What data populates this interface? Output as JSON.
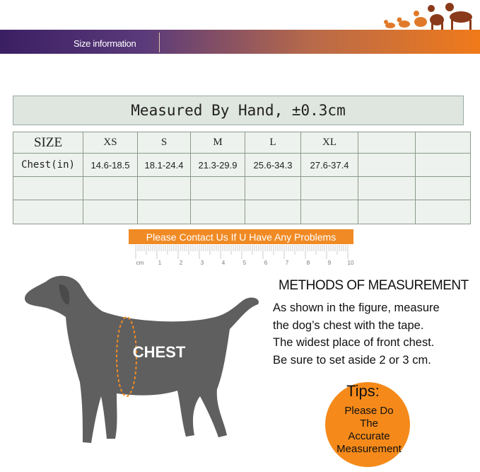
{
  "header": {
    "title": "Size information"
  },
  "measure_note": "Measured By Hand, ±0.3cm",
  "table": {
    "rows": [
      [
        "SIZE",
        "XS",
        "S",
        "M",
        "L",
        "XL"
      ],
      [
        "Chest(in)",
        "14.6-18.5",
        "18.1-24.4",
        "21.3-29.9",
        "25.6-34.3",
        "27.6-37.4"
      ]
    ]
  },
  "contact_banner": "Please Contact Us If U Have Any Problems",
  "ruler": {
    "labels": [
      "cm",
      "1",
      "2",
      "3",
      "4",
      "5",
      "6",
      "7",
      "8",
      "9",
      "10"
    ]
  },
  "figure_label": "CHEST",
  "methods": {
    "title": "METHODS OF MEASUREMENT",
    "lines": [
      "As shown in the figure, measure",
      "the dog’s chest with the tape.",
      "The widest place of front chest.",
      "Be sure to set aside 2 or 3 cm."
    ]
  },
  "tips": {
    "title": "Tips:",
    "lines": [
      "Please Do",
      "The",
      "Accurate",
      "Measurement"
    ]
  }
}
